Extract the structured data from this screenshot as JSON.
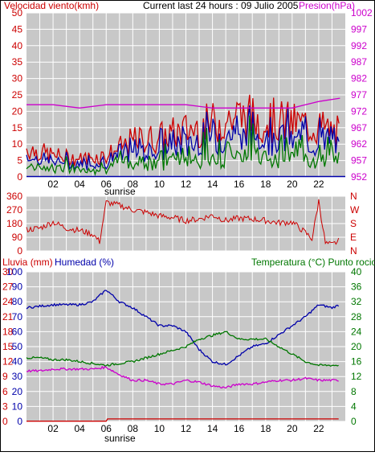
{
  "colors": {
    "panel_bg": "#c8c8c8",
    "grid": "#ffffff",
    "red": "#cc0000",
    "magenta": "#cc00cc",
    "blue": "#0000aa",
    "green": "#007700"
  },
  "top": {
    "title_left": "Velocidad viento(kmh)",
    "title_center": "Current last 24 hours : 09 Julio 2005",
    "title_right": "Presion(hPa)",
    "left_ticks": [
      "0",
      "5",
      "10",
      "15",
      "20",
      "25",
      "30",
      "35",
      "40",
      "45",
      "50"
    ],
    "right_ticks": [
      "952",
      "957",
      "962",
      "967",
      "972",
      "977",
      "982",
      "987",
      "992",
      "997",
      "1002"
    ],
    "sunrise": "sunrise"
  },
  "mid": {
    "left_ticks": [
      "0",
      "90",
      "180",
      "270",
      "360"
    ],
    "right_labels": [
      "N",
      "W",
      "S",
      "E",
      "N"
    ]
  },
  "bottom": {
    "title_left1": "Lluvia (mm)",
    "title_left2": "Humedad (%)",
    "title_right": "Temperatura (°C) Punto rocio",
    "rain_ticks": [
      "0",
      "3",
      "6",
      "9",
      "12",
      "15",
      "18",
      "21",
      "24",
      "27",
      "30"
    ],
    "hum_ticks": [
      "0",
      "10",
      "20",
      "30",
      "40",
      "50",
      "60",
      "70",
      "80",
      "90",
      "100"
    ],
    "temp_ticks": [
      "0",
      "4",
      "8",
      "12",
      "16",
      "20",
      "24",
      "28",
      "32",
      "36",
      "40"
    ],
    "sunrise": "sunrise"
  },
  "x_ticks": [
    "02",
    "04",
    "06",
    "08",
    "10",
    "12",
    "14",
    "16",
    "18",
    "20",
    "22"
  ],
  "chart_data": [
    {
      "type": "line",
      "name": "wind_and_pressure",
      "title": "Current last 24 hours : 09 Julio 2005",
      "ylabel": "Velocidad viento(kmh)",
      "ylabel_right": "Presion(hPa)",
      "ylim": [
        0,
        50
      ],
      "ylim_right": [
        952,
        1002
      ],
      "x": [
        0,
        2,
        4,
        6,
        8,
        10,
        12,
        14,
        16,
        18,
        20,
        22,
        23.6
      ],
      "series": [
        {
          "name": "Velocidad viento",
          "color": "#cc0000",
          "values": [
            8,
            6,
            5,
            6,
            10,
            11,
            13,
            15,
            17,
            16,
            15,
            14,
            12
          ]
        },
        {
          "name": "Presion",
          "color": "#cc00cc",
          "values": [
            974,
            974,
            973,
            974,
            974,
            974,
            974,
            973,
            973,
            973,
            973,
            975,
            976
          ]
        }
      ]
    },
    {
      "type": "line",
      "name": "wind_direction",
      "ylabel": "",
      "ylim": [
        0,
        360
      ],
      "x": [
        0,
        1,
        2,
        3,
        4,
        5,
        5.5,
        6,
        7,
        8,
        9,
        10,
        11,
        12,
        13,
        14,
        15,
        16,
        17,
        18,
        19,
        20,
        21,
        21.5,
        22,
        22.5,
        23,
        23.6
      ],
      "values": [
        140,
        150,
        190,
        150,
        135,
        110,
        60,
        320,
        300,
        270,
        255,
        230,
        220,
        200,
        210,
        235,
        200,
        215,
        210,
        200,
        185,
        190,
        120,
        80,
        330,
        50,
        40,
        70
      ]
    },
    {
      "type": "line",
      "name": "rain_humidity_temperature",
      "ylabel": "Lluvia (mm)",
      "ylabel_right": "Temperatura (°C) Punto rocio",
      "ylim": [
        0,
        40
      ],
      "x": [
        0,
        1,
        2,
        3,
        4,
        5,
        6,
        7,
        8,
        9,
        10,
        11,
        12,
        13,
        14,
        15,
        16,
        17,
        18,
        19,
        20,
        21,
        22,
        23,
        23.6
      ],
      "series": [
        {
          "name": "Humedad",
          "color": "#0000aa",
          "ylim": [
            0,
            100
          ],
          "values": [
            76,
            77,
            78,
            78,
            78,
            80,
            88,
            80,
            76,
            70,
            64,
            64,
            60,
            48,
            40,
            38,
            44,
            50,
            52,
            58,
            64,
            70,
            78,
            76,
            78
          ]
        },
        {
          "name": "Temperatura",
          "color": "#007700",
          "ylim": [
            0,
            40
          ],
          "values": [
            17,
            17,
            16.5,
            16.5,
            16,
            15.5,
            15,
            15.5,
            16,
            17,
            18,
            19,
            20,
            22,
            23,
            24,
            22,
            22,
            22,
            20,
            18,
            16,
            15,
            15,
            15
          ]
        },
        {
          "name": "Punto rocio",
          "color": "#cc00cc",
          "ylim": [
            0,
            40
          ],
          "values": [
            13.5,
            13.5,
            14,
            14,
            14,
            14,
            14.5,
            12.5,
            11,
            11,
            10,
            10,
            11,
            10.5,
            9.5,
            9,
            10,
            10,
            10.5,
            11,
            11,
            11.5,
            11,
            11,
            11
          ]
        },
        {
          "name": "Lluvia",
          "color": "#cc0000",
          "ylim": [
            0,
            30
          ],
          "values": [
            0,
            0,
            0,
            0,
            0,
            0,
            0.5,
            0.5,
            0.5,
            0.5,
            0.5,
            0.5,
            0.5,
            0.5,
            0.5,
            0.5,
            0.5,
            0.5,
            0.5,
            0.5,
            0.5,
            0.5,
            0.5,
            0.5,
            0.5
          ]
        }
      ]
    }
  ]
}
